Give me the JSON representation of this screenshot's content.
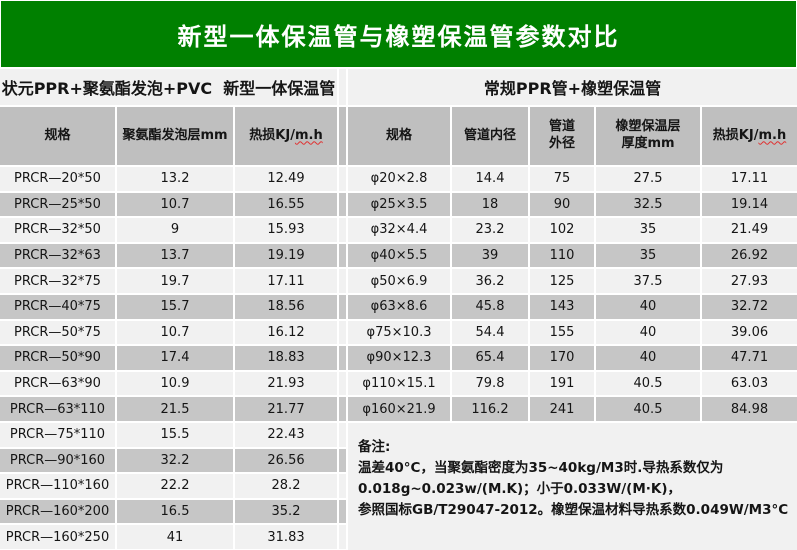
{
  "title": "新型一体保温管与橡塑保温管参数对比",
  "colors": {
    "banner_green": "#008000",
    "header_gray": "#BFBFBF",
    "row_light": "#F1F1F1",
    "row_dark": "#C6C6C6",
    "title_text": "#FFFFFF",
    "wavy_underline": "#E03030"
  },
  "left_table": {
    "section_title": "状元PPR+聚氨酯发泡+PVC  新型一体保温管",
    "headers": [
      "规格",
      "聚氨酯发泡层mm"
    ],
    "heat_loss_header": {
      "prefix": "热损KJ/",
      "wavy": "m.h"
    },
    "rows": [
      [
        "PRCR—20*50",
        "13.2",
        "12.49"
      ],
      [
        "PRCR—25*50",
        "10.7",
        "16.55"
      ],
      [
        "PRCR—32*50",
        "9",
        "15.93"
      ],
      [
        "PRCR—32*63",
        "13.7",
        "19.19"
      ],
      [
        "PRCR—32*75",
        "19.7",
        "17.11"
      ],
      [
        "PRCR—40*75",
        "15.7",
        "18.56"
      ],
      [
        "PRCR—50*75",
        "10.7",
        "16.12"
      ],
      [
        "PRCR—50*90",
        "17.4",
        "18.83"
      ],
      [
        "PRCR—63*90",
        "10.9",
        "21.93"
      ],
      [
        "PRCR—63*110",
        "21.5",
        "21.77"
      ],
      [
        "PRCR—75*110",
        "15.5",
        "22.43"
      ],
      [
        "PRCR—90*160",
        "32.2",
        "26.56"
      ],
      [
        "PRCR—110*160",
        "22.2",
        "28.2"
      ],
      [
        "PRCR—160*200",
        "16.5",
        "35.2"
      ],
      [
        "PRCR—160*250",
        "41",
        "31.83"
      ]
    ]
  },
  "right_table": {
    "section_title": "常规PPR管+橡塑保温管",
    "headers": [
      "规格",
      "管道内径",
      "管道\n外径",
      "橡塑保温层\n厚度mm"
    ],
    "heat_loss_header": {
      "prefix": "热损KJ/",
      "wavy": "m.h"
    },
    "rows": [
      [
        "φ20×2.8",
        "14.4",
        "75",
        "27.5",
        "17.11"
      ],
      [
        "φ25×3.5",
        "18",
        "90",
        "32.5",
        "19.14"
      ],
      [
        "φ32×4.4",
        "23.2",
        "102",
        "35",
        "21.49"
      ],
      [
        "φ40×5.5",
        "39",
        "110",
        "35",
        "26.92"
      ],
      [
        "φ50×6.9",
        "36.2",
        "125",
        "37.5",
        "27.93"
      ],
      [
        "φ63×8.6",
        "45.8",
        "143",
        "40",
        "32.72"
      ],
      [
        "φ75×10.3",
        "54.4",
        "155",
        "40",
        "39.06"
      ],
      [
        "φ90×12.3",
        "65.4",
        "170",
        "40",
        "47.71"
      ],
      [
        "φ110×15.1",
        "79.8",
        "191",
        "40.5",
        "63.03"
      ],
      [
        "φ160×21.9",
        "116.2",
        "241",
        "40.5",
        "84.98"
      ]
    ]
  },
  "remark": {
    "label": "备注:",
    "lines": [
      "温差40°C，当聚氨酯密度为35~40kg/M3时.导热系数仅为",
      "0.018g~0.023w/(M.K)；小于0.033W/(M·K)，",
      "参照国标GB/T29047-2012。橡塑保温材料导热系数0.049W/M3°C"
    ]
  }
}
